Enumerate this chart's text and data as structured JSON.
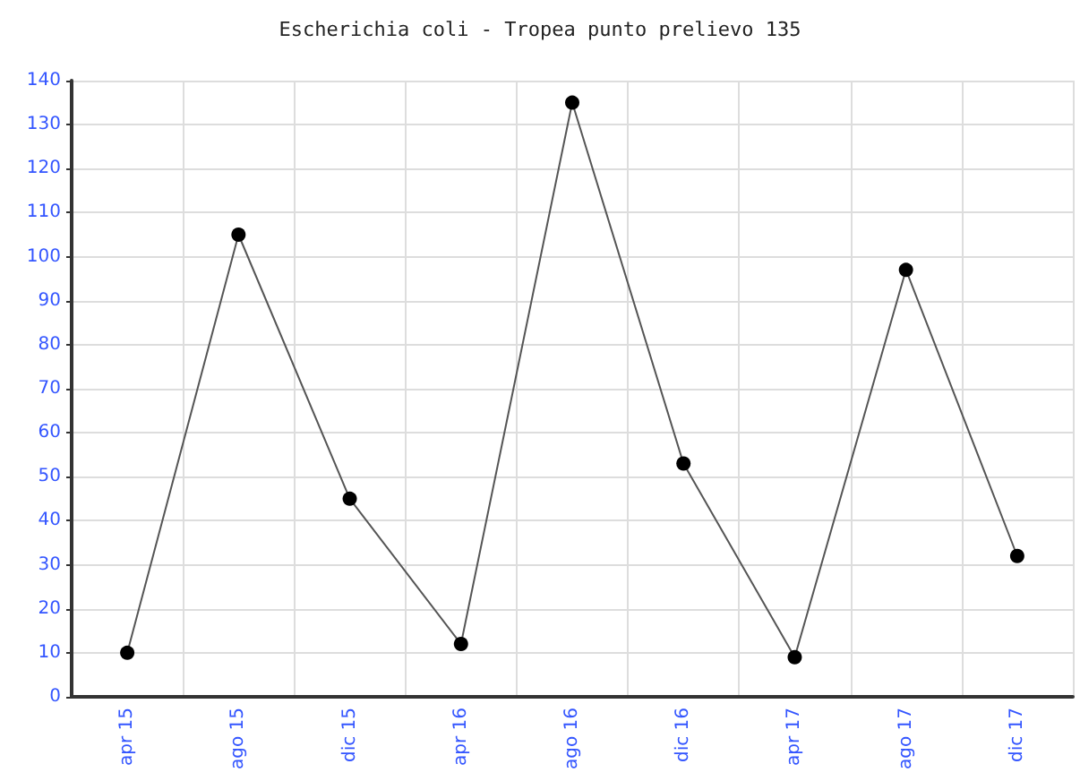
{
  "chart_data": {
    "type": "line",
    "title": "Escherichia coli - Tropea punto prelievo 135",
    "categories": [
      "apr 15",
      "ago 15",
      "dic 15",
      "apr 16",
      "ago 16",
      "dic 16",
      "apr 17",
      "ago 17",
      "dic 17"
    ],
    "series": [
      {
        "color": "#000000",
        "values": [
          10,
          105,
          45,
          12,
          135,
          53,
          9,
          97,
          32
        ]
      }
    ],
    "ylim": [
      0,
      140
    ],
    "yticks": [
      0,
      10,
      20,
      30,
      40,
      50,
      60,
      70,
      80,
      90,
      100,
      110,
      120,
      130,
      140
    ],
    "grid": true,
    "marker": "circle",
    "line_style": "solid"
  }
}
